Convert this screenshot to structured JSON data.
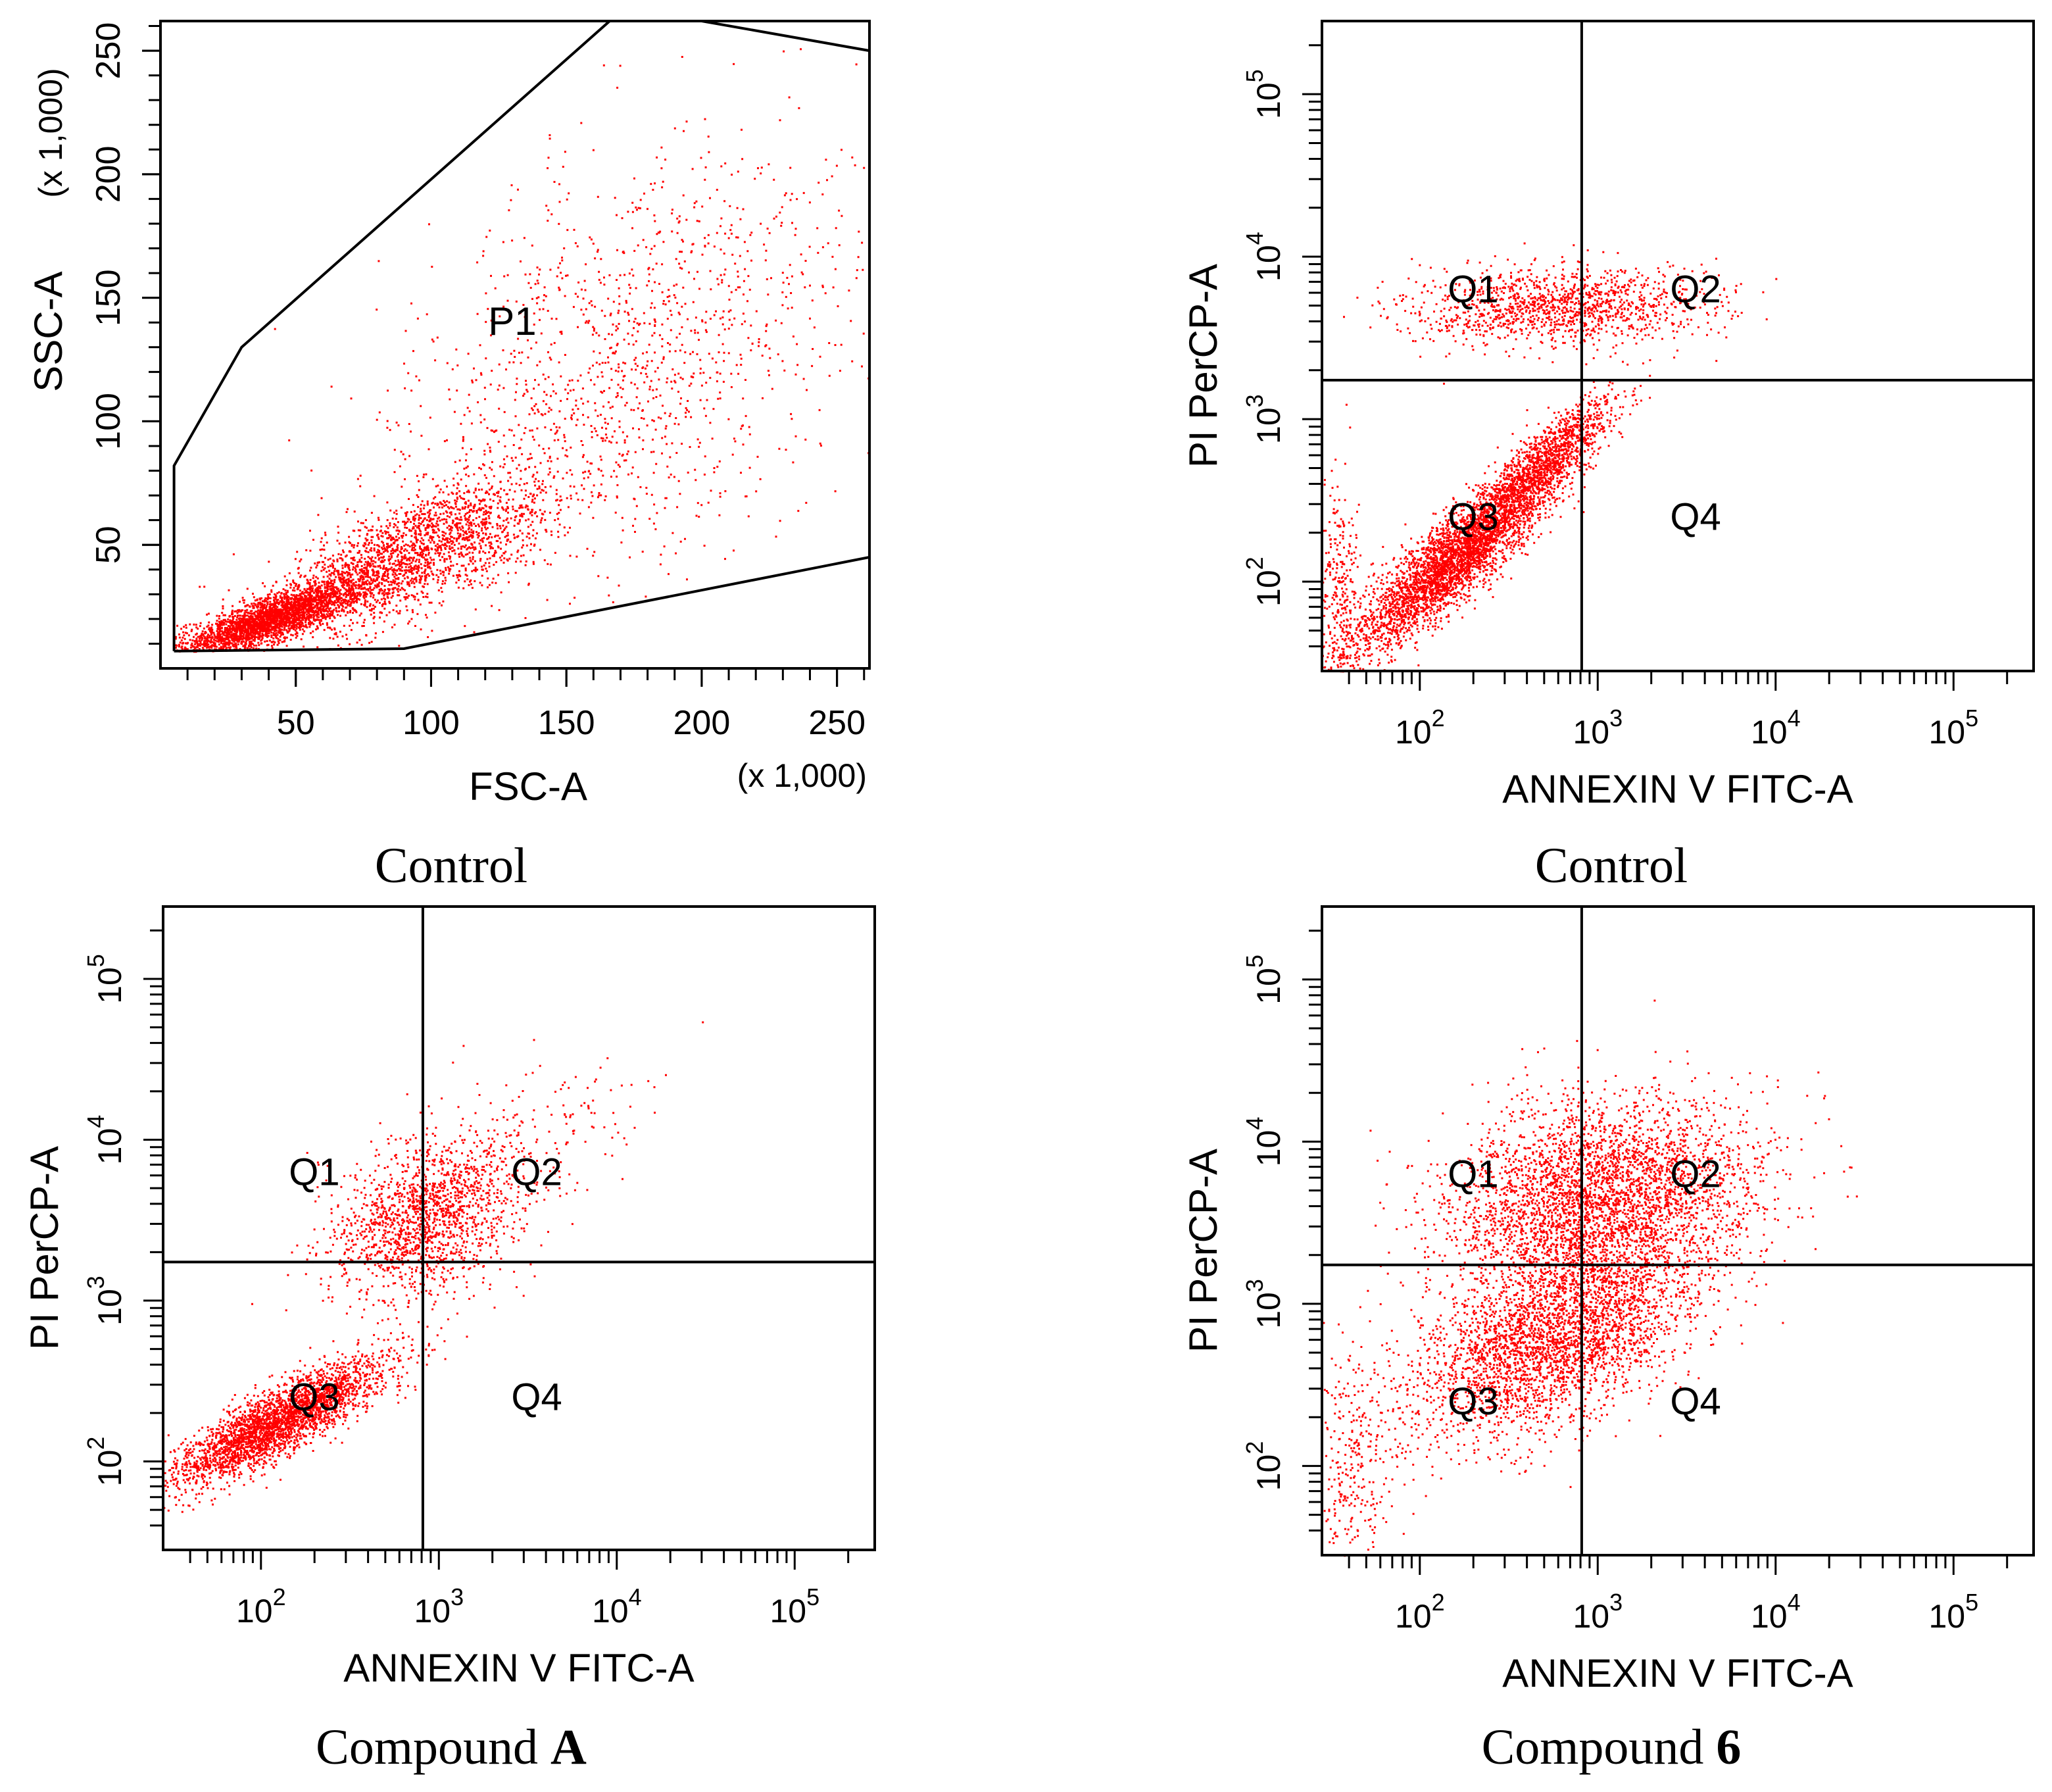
{
  "figure": {
    "point_color": "#ff0000",
    "panels": [
      {
        "id": "p1",
        "caption": {
          "text": "Control",
          "bold": ""
        },
        "chart_data": {
          "type": "scatter",
          "scale": "linear",
          "xlabel": "FSC-A",
          "ylabel": "SSC-A",
          "x_multiplier_label": "(x 1,000)",
          "y_multiplier_label": "(x 1,000)",
          "xlim": [
            0,
            262
          ],
          "ylim": [
            0,
            262
          ],
          "xticks": [
            50,
            100,
            150,
            200,
            250
          ],
          "yticks": [
            50,
            100,
            150,
            200,
            250
          ],
          "gate": {
            "label": "P1",
            "vertices": [
              [
                5,
                7
              ],
              [
                5,
                82
              ],
              [
                30,
                130
              ],
              [
                166,
                262
              ],
              [
                200,
                262
              ],
              [
                262,
                250
              ],
              [
                262,
                45
              ],
              [
                90,
                8
              ],
              [
                5,
                7
              ]
            ]
          },
          "clusters": [
            {
              "n": 2800,
              "cx": 40,
              "cy": 20,
              "sx": 18,
              "sy": 8,
              "rho": 0.85
            },
            {
              "n": 2200,
              "cx": 90,
              "cy": 45,
              "sx": 28,
              "sy": 16,
              "rho": 0.75
            },
            {
              "n": 1400,
              "cx": 170,
              "cy": 120,
              "sx": 45,
              "sy": 45,
              "rho": 0.45
            }
          ]
        }
      },
      {
        "id": "p2",
        "caption": {
          "text": "Control",
          "bold": ""
        },
        "chart_data": {
          "type": "scatter",
          "scale": "log",
          "xlabel": "ANNEXIN V FITC-A",
          "ylabel": "PI PerCP-A",
          "xlim": [
            1.45,
            5.45
          ],
          "ylim": [
            1.45,
            5.45
          ],
          "xticks_exp": [
            2,
            3,
            4,
            5
          ],
          "yticks_exp": [
            2,
            3,
            4,
            5
          ],
          "quadrant_divider": {
            "x": 2.91,
            "y": 3.24
          },
          "quadrants": [
            "Q1",
            "Q2",
            "Q3",
            "Q4"
          ],
          "clusters": [
            {
              "n": 3600,
              "cx": 2.2,
              "cy": 2.15,
              "sx": 0.28,
              "sy": 0.28,
              "rho": 0.88
            },
            {
              "n": 1200,
              "cx": 2.7,
              "cy": 2.75,
              "sx": 0.2,
              "sy": 0.2,
              "rho": 0.85
            },
            {
              "n": 1300,
              "cx": 2.8,
              "cy": 3.7,
              "sx": 0.42,
              "sy": 0.12,
              "rho": 0.1
            },
            {
              "n": 300,
              "cx": 1.55,
              "cy": 1.9,
              "sx": 0.06,
              "sy": 0.35,
              "rho": 0.0
            }
          ]
        }
      },
      {
        "id": "p3",
        "caption": {
          "text": "Compound ",
          "bold": "A"
        },
        "chart_data": {
          "type": "scatter",
          "scale": "log",
          "xlabel": "ANNEXIN V FITC-A",
          "ylabel": "PI PerCP-A",
          "xlim": [
            1.45,
            5.45
          ],
          "ylim": [
            1.45,
            5.45
          ],
          "xticks_exp": [
            2,
            3,
            4,
            5
          ],
          "yticks_exp": [
            2,
            3,
            4,
            5
          ],
          "quadrant_divider": {
            "x": 2.91,
            "y": 3.24
          },
          "quadrants": [
            "Q1",
            "Q2",
            "Q3",
            "Q4"
          ],
          "clusters": [
            {
              "n": 3000,
              "cx": 2.1,
              "cy": 2.25,
              "sx": 0.3,
              "sy": 0.2,
              "rho": 0.85
            },
            {
              "n": 1500,
              "cx": 2.9,
              "cy": 3.5,
              "sx": 0.25,
              "sy": 0.25,
              "rho": 0.3
            },
            {
              "n": 250,
              "cx": 3.4,
              "cy": 3.9,
              "sx": 0.35,
              "sy": 0.3,
              "rho": 0.6
            }
          ]
        }
      },
      {
        "id": "p4",
        "caption": {
          "text": "Compound ",
          "bold": "6"
        },
        "chart_data": {
          "type": "scatter",
          "scale": "log",
          "xlabel": "ANNEXIN V FITC-A",
          "ylabel": "PI PerCP-A",
          "xlim": [
            1.45,
            5.45
          ],
          "ylim": [
            1.45,
            5.45
          ],
          "xticks_exp": [
            2,
            3,
            4,
            5
          ],
          "yticks_exp": [
            2,
            3,
            4,
            5
          ],
          "quadrant_divider": {
            "x": 2.91,
            "y": 3.24
          },
          "quadrants": [
            "Q1",
            "Q2",
            "Q3",
            "Q4"
          ],
          "clusters": [
            {
              "n": 3200,
              "cx": 2.75,
              "cy": 2.8,
              "sx": 0.42,
              "sy": 0.32,
              "rho": 0.55
            },
            {
              "n": 3600,
              "cx": 3.0,
              "cy": 3.65,
              "sx": 0.42,
              "sy": 0.3,
              "rho": 0.2
            },
            {
              "n": 300,
              "cx": 1.6,
              "cy": 2.0,
              "sx": 0.12,
              "sy": 0.4,
              "rho": 0.0
            }
          ]
        }
      }
    ]
  }
}
